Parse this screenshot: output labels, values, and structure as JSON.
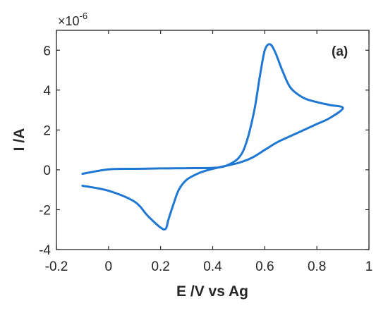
{
  "chart_data": {
    "type": "line",
    "title": "",
    "xlabel": "E /V vs Ag",
    "ylabel": "I /A",
    "y_exponent_label": "×10",
    "y_exponent_power": "-6",
    "annotation": "(a)",
    "xlim": [
      -0.2,
      1.0
    ],
    "ylim": [
      -4,
      7
    ],
    "ylim_units": "×10^-6 A",
    "x_ticks": [
      -0.2,
      0,
      0.2,
      0.4,
      0.6,
      0.8,
      1.0
    ],
    "x_tick_labels": [
      "-0.2",
      "0",
      "0.2",
      "0.4",
      "0.6",
      "0.8",
      "1"
    ],
    "y_ticks": [
      -4,
      -2,
      0,
      2,
      4,
      6
    ],
    "y_tick_labels": [
      "-4",
      "-2",
      "0",
      "2",
      "4",
      "6"
    ],
    "grid": false,
    "line_color": "#1f77d4",
    "series": [
      {
        "x": [
          -0.1,
          0.0,
          0.1,
          0.2,
          0.3,
          0.4,
          0.45,
          0.5,
          0.53,
          0.56,
          0.58,
          0.6,
          0.62,
          0.64,
          0.67,
          0.7,
          0.75,
          0.8,
          0.85,
          0.9,
          0.85,
          0.8,
          0.75,
          0.7,
          0.65,
          0.6,
          0.55,
          0.5,
          0.45,
          0.4,
          0.35,
          0.3,
          0.27,
          0.25,
          0.23,
          0.22,
          0.2,
          0.15,
          0.1,
          0.0,
          -0.1
        ],
        "y": [
          -0.2,
          0.02,
          0.05,
          0.07,
          0.08,
          0.1,
          0.2,
          0.6,
          1.4,
          3.0,
          4.6,
          6.0,
          6.3,
          5.9,
          4.9,
          4.1,
          3.6,
          3.4,
          3.25,
          3.1,
          2.6,
          2.3,
          2.0,
          1.7,
          1.4,
          1.0,
          0.6,
          0.35,
          0.2,
          0.05,
          -0.15,
          -0.5,
          -1.0,
          -1.7,
          -2.5,
          -2.95,
          -2.9,
          -2.3,
          -1.6,
          -1.05,
          -0.8
        ]
      }
    ]
  }
}
